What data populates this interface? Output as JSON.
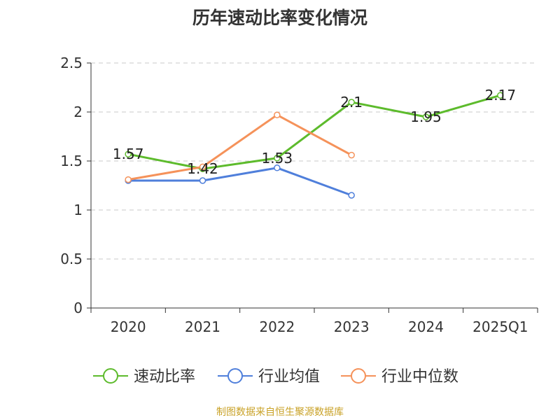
{
  "chart_data": {
    "type": "line",
    "title": "历年速动比率变化情况",
    "categories": [
      "2020",
      "2021",
      "2022",
      "2023",
      "2024",
      "2025Q1"
    ],
    "y_ticks": [
      "0",
      "0.5",
      "1",
      "1.5",
      "2",
      "2.5"
    ],
    "ylim": [
      0,
      2.5
    ],
    "grid": true,
    "legend_position": "bottom",
    "series": [
      {
        "name": "速动比率",
        "color": "#5dbb2c",
        "values": [
          1.57,
          1.42,
          1.53,
          2.1,
          1.95,
          2.17
        ],
        "labels": [
          "1.57",
          "1.42",
          "1.53",
          "2.1",
          "1.95",
          "2.17"
        ]
      },
      {
        "name": "行业均值",
        "color": "#4f7fdb",
        "values": [
          1.3,
          1.3,
          1.43,
          1.15,
          null,
          null
        ]
      },
      {
        "name": "行业中位数",
        "color": "#f5925a",
        "values": [
          1.31,
          1.44,
          1.97,
          1.56,
          null,
          null
        ]
      }
    ]
  },
  "source_note": "制图数据来自恒生聚源数据库"
}
